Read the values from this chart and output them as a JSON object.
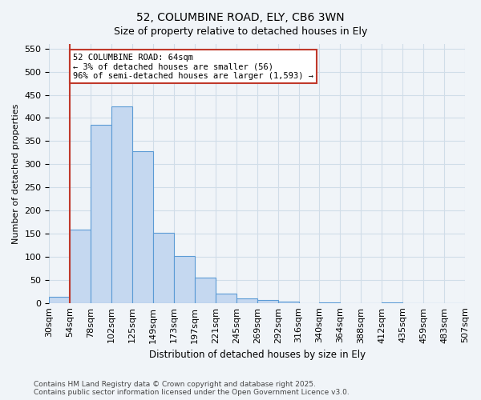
{
  "title_line1": "52, COLUMBINE ROAD, ELY, CB6 3WN",
  "title_line2": "Size of property relative to detached houses in Ely",
  "xlabel": "Distribution of detached houses by size in Ely",
  "ylabel": "Number of detached properties",
  "bin_labels": [
    "30sqm",
    "54sqm",
    "78sqm",
    "102sqm",
    "125sqm",
    "149sqm",
    "173sqm",
    "197sqm",
    "221sqm",
    "245sqm",
    "269sqm",
    "292sqm",
    "316sqm",
    "340sqm",
    "364sqm",
    "388sqm",
    "412sqm",
    "435sqm",
    "459sqm",
    "483sqm",
    "507sqm"
  ],
  "bar_values": [
    14,
    158,
    385,
    425,
    328,
    152,
    101,
    54,
    20,
    10,
    7,
    3,
    0,
    1,
    0,
    0,
    1,
    0,
    0,
    0
  ],
  "bar_color": "#c5d8f0",
  "bar_edge_color": "#5b9bd5",
  "vline_x_index": 1,
  "vline_color": "#c0392b",
  "annotation_text": "52 COLUMBINE ROAD: 64sqm\n← 3% of detached houses are smaller (56)\n96% of semi-detached houses are larger (1,593) →",
  "annotation_box_color": "#c0392b",
  "ylim": [
    0,
    560
  ],
  "yticks": [
    0,
    50,
    100,
    150,
    200,
    250,
    300,
    350,
    400,
    450,
    500,
    550
  ],
  "grid_color": "#d0dde8",
  "background_color": "#f0f4f8",
  "footer_line1": "Contains HM Land Registry data © Crown copyright and database right 2025.",
  "footer_line2": "Contains public sector information licensed under the Open Government Licence v3.0."
}
